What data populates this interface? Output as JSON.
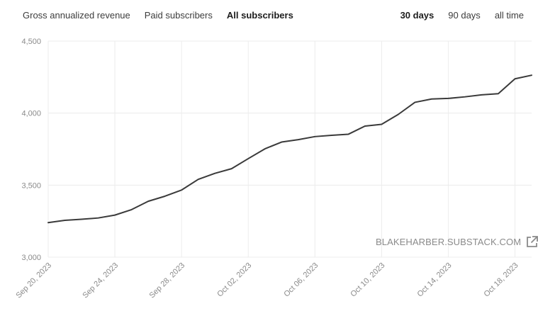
{
  "tabs_left": [
    {
      "label": "Gross annualized revenue",
      "active": false
    },
    {
      "label": "Paid subscribers",
      "active": false
    },
    {
      "label": "All subscribers",
      "active": true
    }
  ],
  "tabs_right": [
    {
      "label": "30 days",
      "active": true
    },
    {
      "label": "90 days",
      "active": false
    },
    {
      "label": "all time",
      "active": false
    }
  ],
  "watermark": {
    "text": "BLAKEHARBER.SUBSTACK.COM",
    "icon": "external-link-icon"
  },
  "colors": {
    "line": "#3a3a3a",
    "grid": "#ececec",
    "axis_text": "#8a8a8a"
  },
  "chart_data": {
    "type": "line",
    "title": "",
    "xlabel": "",
    "ylabel": "",
    "ylim": [
      3000,
      4500
    ],
    "y_ticks": [
      3000,
      3500,
      4000,
      4500
    ],
    "y_tick_labels": [
      "3,000",
      "3,500",
      "4,000",
      "4,500"
    ],
    "x_tick_labels": [
      "Sep 20, 2023",
      "Sep 24, 2023",
      "Sep 28, 2023",
      "Oct 02, 2023",
      "Oct 06, 2023",
      "Oct 10, 2023",
      "Oct 14, 2023",
      "Oct 18, 2023"
    ],
    "grid": true,
    "x": [
      "2023-09-20",
      "2023-09-21",
      "2023-09-22",
      "2023-09-23",
      "2023-09-24",
      "2023-09-25",
      "2023-09-26",
      "2023-09-27",
      "2023-09-28",
      "2023-09-29",
      "2023-09-30",
      "2023-10-01",
      "2023-10-02",
      "2023-10-03",
      "2023-10-04",
      "2023-10-05",
      "2023-10-06",
      "2023-10-07",
      "2023-10-08",
      "2023-10-09",
      "2023-10-10",
      "2023-10-11",
      "2023-10-12",
      "2023-10-13",
      "2023-10-14",
      "2023-10-15",
      "2023-10-16",
      "2023-10-17",
      "2023-10-18",
      "2023-10-19"
    ],
    "series": [
      {
        "values": [
          3240,
          3256,
          3263,
          3272,
          3292,
          3330,
          3388,
          3423,
          3466,
          3540,
          3582,
          3614,
          3684,
          3752,
          3799,
          3816,
          3837,
          3846,
          3853,
          3910,
          3922,
          3991,
          4075,
          4098,
          4102,
          4113,
          4127,
          4135,
          4238,
          4263
        ]
      }
    ]
  }
}
